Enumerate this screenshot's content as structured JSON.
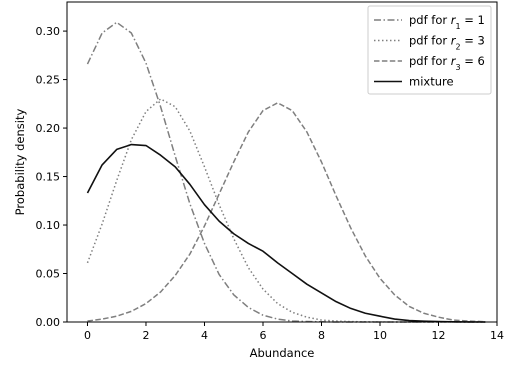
{
  "chart_data": {
    "type": "line",
    "title": "",
    "xlabel": "Abundance",
    "ylabel": "Probability density",
    "xlim": [
      -0.7,
      14.0
    ],
    "ylim": [
      0.0,
      0.33
    ],
    "xticks": [
      0,
      2,
      4,
      6,
      8,
      10,
      12,
      14
    ],
    "yticks": [
      0.0,
      0.05,
      0.1,
      0.15,
      0.2,
      0.25,
      0.3
    ],
    "xtick_labels": [
      "0",
      "2",
      "4",
      "6",
      "8",
      "10",
      "12",
      "14"
    ],
    "ytick_labels": [
      "0.00",
      "0.05",
      "0.10",
      "0.15",
      "0.20",
      "0.25",
      "0.30"
    ],
    "grid": false,
    "legend_position": "top-right",
    "x": [
      0,
      0.5,
      1,
      1.5,
      2,
      2.5,
      3,
      3.5,
      4,
      4.5,
      5,
      5.5,
      6,
      6.5,
      7,
      7.5,
      8,
      8.5,
      9,
      9.5,
      10,
      10.5,
      11,
      11.5,
      12,
      12.5,
      13,
      13.5,
      13.6
    ],
    "series": [
      {
        "name_parts": [
          "pdf for ",
          "r",
          "1",
          " = 1"
        ],
        "color": "#7f7f7f",
        "style": "dashdot",
        "values": [
          0.266,
          0.298,
          0.309,
          0.298,
          0.267,
          0.222,
          0.171,
          0.122,
          0.081,
          0.049,
          0.028,
          0.015,
          0.007,
          0.003,
          0.001,
          0.0005,
          0.0002,
          0,
          0,
          0,
          0,
          0,
          0,
          0,
          0,
          0,
          0,
          0,
          0
        ]
      },
      {
        "name_parts": [
          "pdf for ",
          "r",
          "2",
          " = 3"
        ],
        "color": "#7f7f7f",
        "style": "dotted",
        "values": [
          0.061,
          0.101,
          0.146,
          0.188,
          0.217,
          0.23,
          0.222,
          0.197,
          0.16,
          0.121,
          0.086,
          0.056,
          0.034,
          0.019,
          0.01,
          0.005,
          0.002,
          0.001,
          0.0004,
          0.0002,
          0.0001,
          0,
          0,
          0,
          0,
          0,
          0,
          0,
          0
        ]
      },
      {
        "name_parts": [
          "pdf for ",
          "r",
          "3",
          " = 6"
        ],
        "color": "#7f7f7f",
        "style": "dashed",
        "values": [
          0.001,
          0.003,
          0.006,
          0.011,
          0.019,
          0.031,
          0.048,
          0.07,
          0.099,
          0.132,
          0.165,
          0.196,
          0.218,
          0.226,
          0.218,
          0.196,
          0.165,
          0.13,
          0.097,
          0.068,
          0.045,
          0.028,
          0.016,
          0.009,
          0.005,
          0.002,
          0.001,
          0.0004,
          0.0003
        ]
      },
      {
        "name": "mixture",
        "color": "#111111",
        "style": "solid",
        "values": [
          0.133,
          0.162,
          0.178,
          0.183,
          0.182,
          0.172,
          0.16,
          0.142,
          0.121,
          0.104,
          0.091,
          0.081,
          0.073,
          0.061,
          0.05,
          0.039,
          0.03,
          0.021,
          0.014,
          0.009,
          0.006,
          0.003,
          0.0015,
          0.0008,
          0.0004,
          0.0002,
          0.0001,
          0,
          0
        ]
      }
    ]
  }
}
